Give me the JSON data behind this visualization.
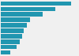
{
  "values": [
    100,
    78,
    60,
    42,
    37,
    33,
    30,
    27,
    22,
    14
  ],
  "bar_color": "#2196b0",
  "background_color": "#f0f0f0",
  "grid_color": "#ffffff",
  "bar_height": 0.75,
  "xlim": [
    0,
    108
  ],
  "figsize": [
    1.0,
    0.71
  ],
  "dpi": 100
}
